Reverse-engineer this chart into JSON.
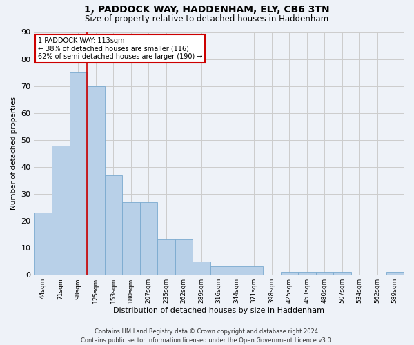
{
  "title": "1, PADDOCK WAY, HADDENHAM, ELY, CB6 3TN",
  "subtitle": "Size of property relative to detached houses in Haddenham",
  "xlabel": "Distribution of detached houses by size in Haddenham",
  "ylabel": "Number of detached properties",
  "categories": [
    "44sqm",
    "71sqm",
    "98sqm",
    "125sqm",
    "153sqm",
    "180sqm",
    "207sqm",
    "235sqm",
    "262sqm",
    "289sqm",
    "316sqm",
    "344sqm",
    "371sqm",
    "398sqm",
    "425sqm",
    "453sqm",
    "480sqm",
    "507sqm",
    "534sqm",
    "562sqm",
    "589sqm"
  ],
  "values": [
    23,
    48,
    75,
    70,
    37,
    27,
    27,
    13,
    13,
    5,
    3,
    3,
    3,
    0,
    1,
    1,
    1,
    1,
    0,
    0,
    1
  ],
  "bar_color": "#b8d0e8",
  "bar_edge_color": "#7aaacf",
  "grid_color": "#cccccc",
  "background_color": "#eef2f8",
  "redline_x": 2.5,
  "annotation_line1": "1 PADDOCK WAY: 113sqm",
  "annotation_line2": "← 38% of detached houses are smaller (116)",
  "annotation_line3": "62% of semi-detached houses are larger (190) →",
  "annotation_box_color": "#ffffff",
  "annotation_box_edge_color": "#cc0000",
  "footer": "Contains HM Land Registry data © Crown copyright and database right 2024.\nContains public sector information licensed under the Open Government Licence v3.0.",
  "ylim": [
    0,
    90
  ],
  "yticks": [
    0,
    10,
    20,
    30,
    40,
    50,
    60,
    70,
    80,
    90
  ],
  "title_fontsize": 10,
  "subtitle_fontsize": 8.5,
  "ylabel_fontsize": 7.5,
  "xlabel_fontsize": 8,
  "ytick_fontsize": 8,
  "xtick_fontsize": 6.5,
  "annotation_fontsize": 7,
  "footer_fontsize": 6
}
